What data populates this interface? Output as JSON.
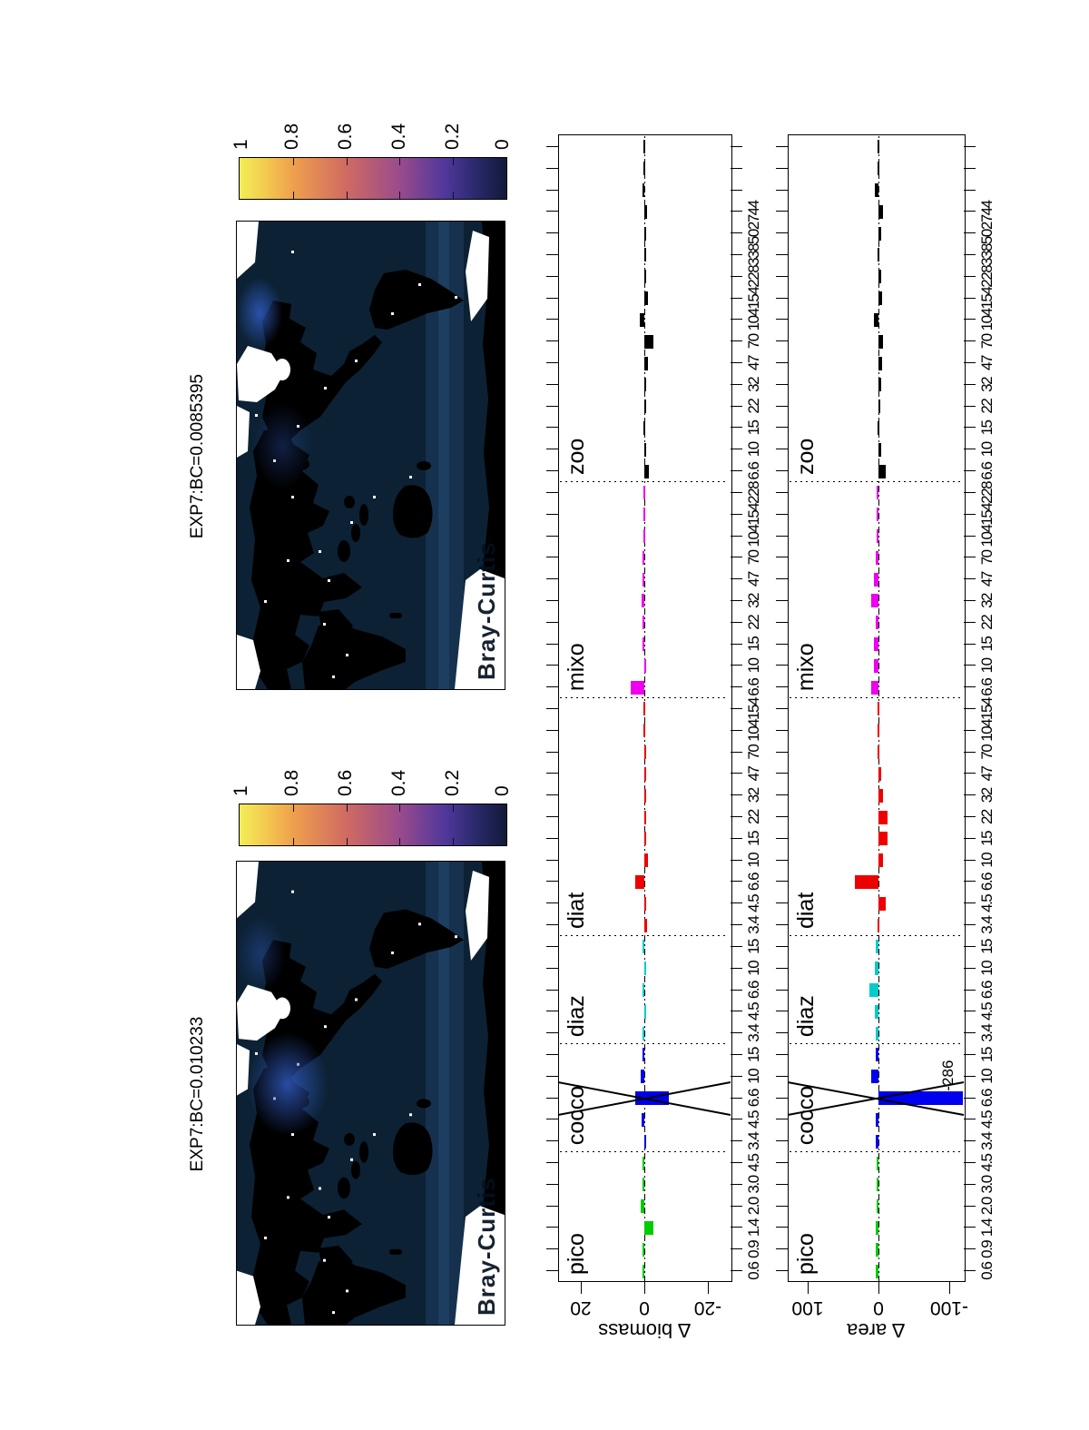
{
  "figure": {
    "maps": [
      {
        "title": "EXP7:BC=0.010233",
        "watermark": "Bray-Curtis"
      },
      {
        "title": "EXP7:BC=0.0085395",
        "watermark": "Bray-Curtis"
      }
    ],
    "colorbar": {
      "tick_labels": [
        "1",
        "0.8",
        "0.6",
        "0.4",
        "0.2",
        "0"
      ],
      "max_color": "#f2ee57",
      "min_color": "#111a38"
    }
  },
  "chart_data": [
    {
      "type": "bar",
      "title": "",
      "xlabel": "",
      "ylabel": "∆ biomass",
      "yticks": [
        "20",
        "0",
        "-20"
      ],
      "ylim": [
        -27,
        27
      ],
      "grid": false,
      "legend": false,
      "categories": [
        "pico",
        "cocco",
        "diaz",
        "diat",
        "mixo",
        "zoo"
      ],
      "groups": [
        {
          "label": "pico",
          "color": "#00cc00",
          "size_ticks": [
            "0.6",
            "0.9",
            "1.4",
            "2.0",
            "3.0",
            "4.5"
          ],
          "values": [
            0.6,
            0.6,
            -2.9,
            1.1,
            0.6,
            0.3
          ]
        },
        {
          "label": "cocco",
          "color": "#0000ee",
          "size_ticks": [
            "3.4",
            "4.5",
            "6.6",
            "10",
            "15"
          ],
          "values": [
            -0.6,
            0.9,
            {
              "from": 2.9,
              "to": -7.7
            },
            1.1,
            0.3
          ]
        },
        {
          "label": "diaz",
          "color": "#00cccc",
          "size_ticks": [
            "3.4",
            "4.5",
            "6.6",
            "10",
            "15"
          ],
          "values": [
            0.3,
            -0.3,
            0.3,
            -0.3,
            0.3
          ]
        },
        {
          "label": "diat",
          "color": "#ee0000",
          "size_ticks": [
            "3.4",
            "4.5",
            "6.6",
            "10",
            "15",
            "22",
            "32",
            "47",
            "70",
            "104",
            "154"
          ],
          "values": [
            -0.9,
            -0.6,
            2.9,
            -1.1,
            -0.3,
            -0.6,
            -0.3,
            -0.3,
            -0.3,
            0.2,
            0.2
          ]
        },
        {
          "label": "mixo",
          "color": "#ee00ee",
          "size_ticks": [
            "6.6",
            "10",
            "15",
            "22",
            "32",
            "47",
            "70",
            "104",
            "154",
            "228"
          ],
          "values": [
            4.3,
            -0.6,
            0.6,
            0.3,
            0.9,
            0.3,
            0.3,
            0.2,
            0.2,
            0.2
          ]
        },
        {
          "label": "zoo",
          "color": "#000000",
          "size_ticks": [
            "6.6",
            "10",
            "15",
            "22",
            "32",
            "47",
            "70",
            "104",
            "154",
            "228",
            "338",
            "502",
            "744",
            "",
            "",
            ""
          ],
          "values": [
            -1.4,
            -0.3,
            0.2,
            -0.3,
            -0.3,
            -1.1,
            -2.9,
            1.4,
            -1.1,
            -0.6,
            -0.3,
            -0.6,
            -0.9,
            0.6,
            0.2,
            0.2
          ]
        }
      ],
      "outlier_cross": {
        "group": 1,
        "slot": 2
      }
    },
    {
      "type": "bar",
      "title": "",
      "xlabel": "",
      "ylabel": "∆ area",
      "yticks": [
        "100",
        "0",
        "-100"
      ],
      "ylim": [
        -120,
        128
      ],
      "grid": false,
      "legend": false,
      "categories": [
        "pico",
        "cocco",
        "diaz",
        "diat",
        "mixo",
        "zoo"
      ],
      "groups": [
        {
          "label": "pico",
          "color": "#00cc00",
          "size_ticks": [
            "0.6",
            "0.9",
            "1.4",
            "2.0",
            "3.0",
            "4.5"
          ],
          "values": [
            4,
            4,
            4,
            3,
            2,
            2
          ]
        },
        {
          "label": "cocco",
          "color": "#0000ee",
          "size_ticks": [
            "3.4",
            "4.5",
            "6.6",
            "10",
            "15"
          ],
          "values": [
            4,
            4,
            {
              "from": 0,
              "to": -286,
              "clipped": true,
              "annotation": "-286"
            },
            10,
            4
          ]
        },
        {
          "label": "diaz",
          "color": "#00cccc",
          "size_ticks": [
            "3.4",
            "4.5",
            "6.6",
            "10",
            "15"
          ],
          "values": [
            4,
            5,
            13,
            5,
            4
          ]
        },
        {
          "label": "diat",
          "color": "#ee0000",
          "size_ticks": [
            "3.4",
            "4.5",
            "6.6",
            "10",
            "15",
            "22",
            "32",
            "47",
            "70",
            "104",
            "154"
          ],
          "values": [
            1,
            -10,
            33,
            -6,
            -13,
            -13,
            -6,
            -4,
            -1,
            1,
            1
          ]
        },
        {
          "label": "mixo",
          "color": "#ee00ee",
          "size_ticks": [
            "6.6",
            "10",
            "15",
            "22",
            "32",
            "47",
            "70",
            "104",
            "154",
            "228"
          ],
          "values": [
            10,
            6,
            6,
            4,
            10,
            6,
            4,
            2,
            2,
            2
          ]
        },
        {
          "label": "zoo",
          "color": "#000000",
          "size_ticks": [
            "6.6",
            "10",
            "15",
            "22",
            "32",
            "47",
            "70",
            "104",
            "154",
            "228",
            "338",
            "502",
            "744",
            "",
            "",
            ""
          ],
          "values": [
            -10,
            -4,
            -1,
            -3,
            -4,
            -5,
            -6,
            6,
            -5,
            -4,
            -1,
            -4,
            -6,
            5,
            -1,
            1
          ]
        }
      ],
      "outlier_cross": {
        "group": 1,
        "slot": 2
      }
    }
  ]
}
